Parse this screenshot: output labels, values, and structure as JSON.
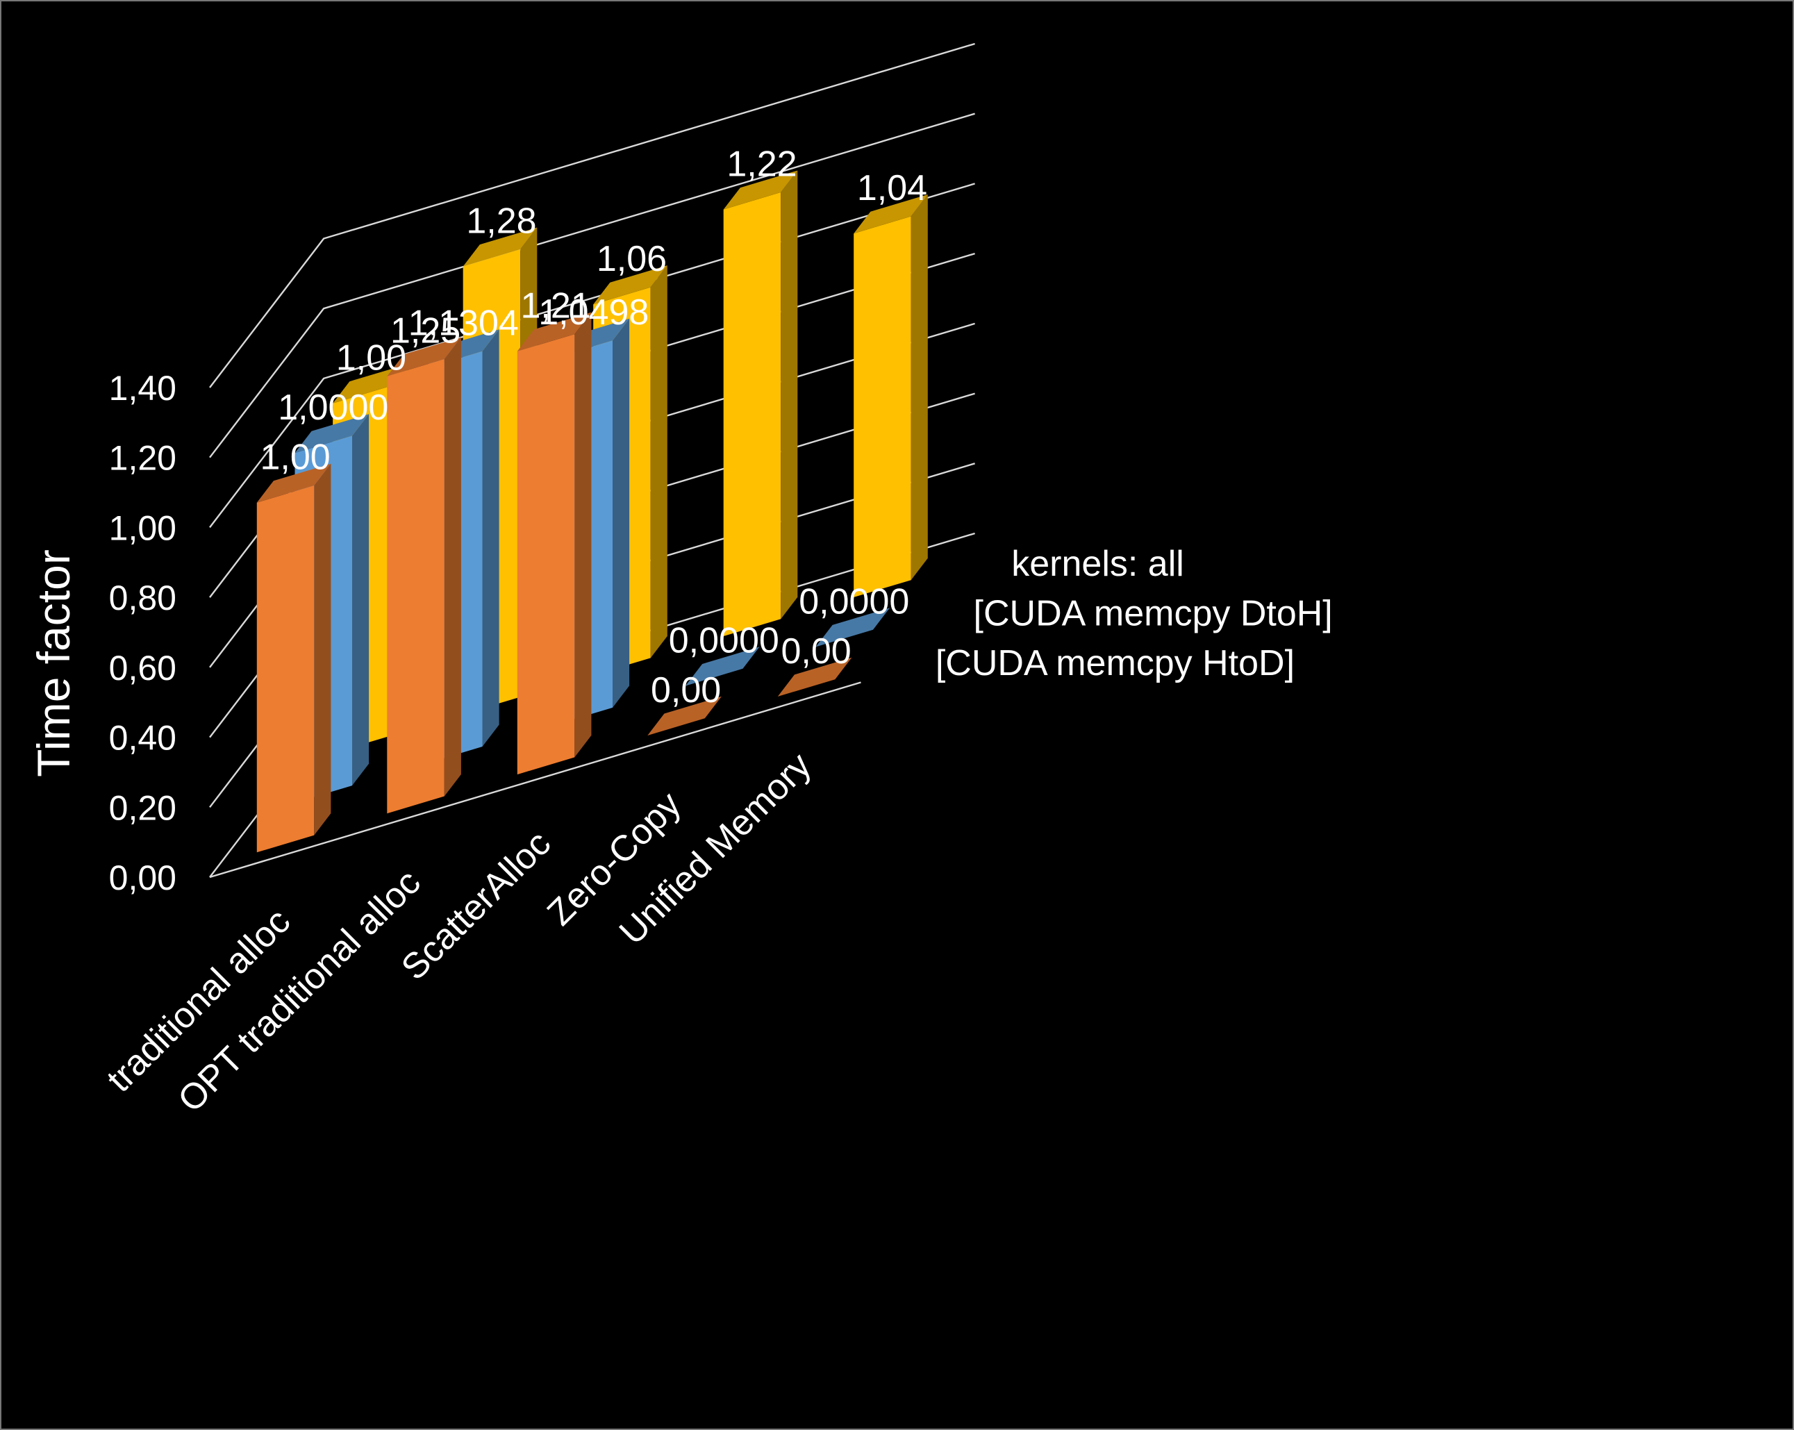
{
  "chart_data": {
    "type": "bar",
    "subtype": "3d-clustered-column",
    "title": "",
    "ylabel": "Time factor",
    "ylim": [
      0,
      1.4
    ],
    "yticks": [
      "0,00",
      "0,20",
      "0,40",
      "0,60",
      "0,80",
      "1,00",
      "1,20",
      "1,40"
    ],
    "ytick_values": [
      0,
      0.2,
      0.4,
      0.6,
      0.8,
      1.0,
      1.2,
      1.4
    ],
    "categories": [
      "traditional alloc",
      "OPT traditional alloc",
      "ScatterAlloc",
      "Zero-Copy",
      "Unified Memory"
    ],
    "series": [
      {
        "name": "[CUDA memcpy HtoD]",
        "values": [
          1.0,
          1.25,
          1.21,
          0.0,
          0.0
        ],
        "labels": [
          "1,00",
          "1,25",
          "1,21",
          "0,00",
          "0,00"
        ],
        "color": "#ED7D31"
      },
      {
        "name": "[CUDA memcpy DtoH]",
        "values": [
          1.0,
          1.1304,
          1.0498,
          0.0,
          0.0
        ],
        "labels": [
          "1,0000",
          "1,1304",
          "1,0498",
          "0,0000",
          "0,0000"
        ],
        "color": "#5B9BD5"
      },
      {
        "name": "kernels: all",
        "values": [
          1.0,
          1.28,
          1.06,
          1.22,
          1.04
        ],
        "labels": [
          "1,00",
          "1,28",
          "1,06",
          "1,22",
          "1,04"
        ],
        "color": "#FFC000"
      }
    ],
    "grid": true,
    "background": "#000000",
    "text_color": "#FFFFFF"
  }
}
